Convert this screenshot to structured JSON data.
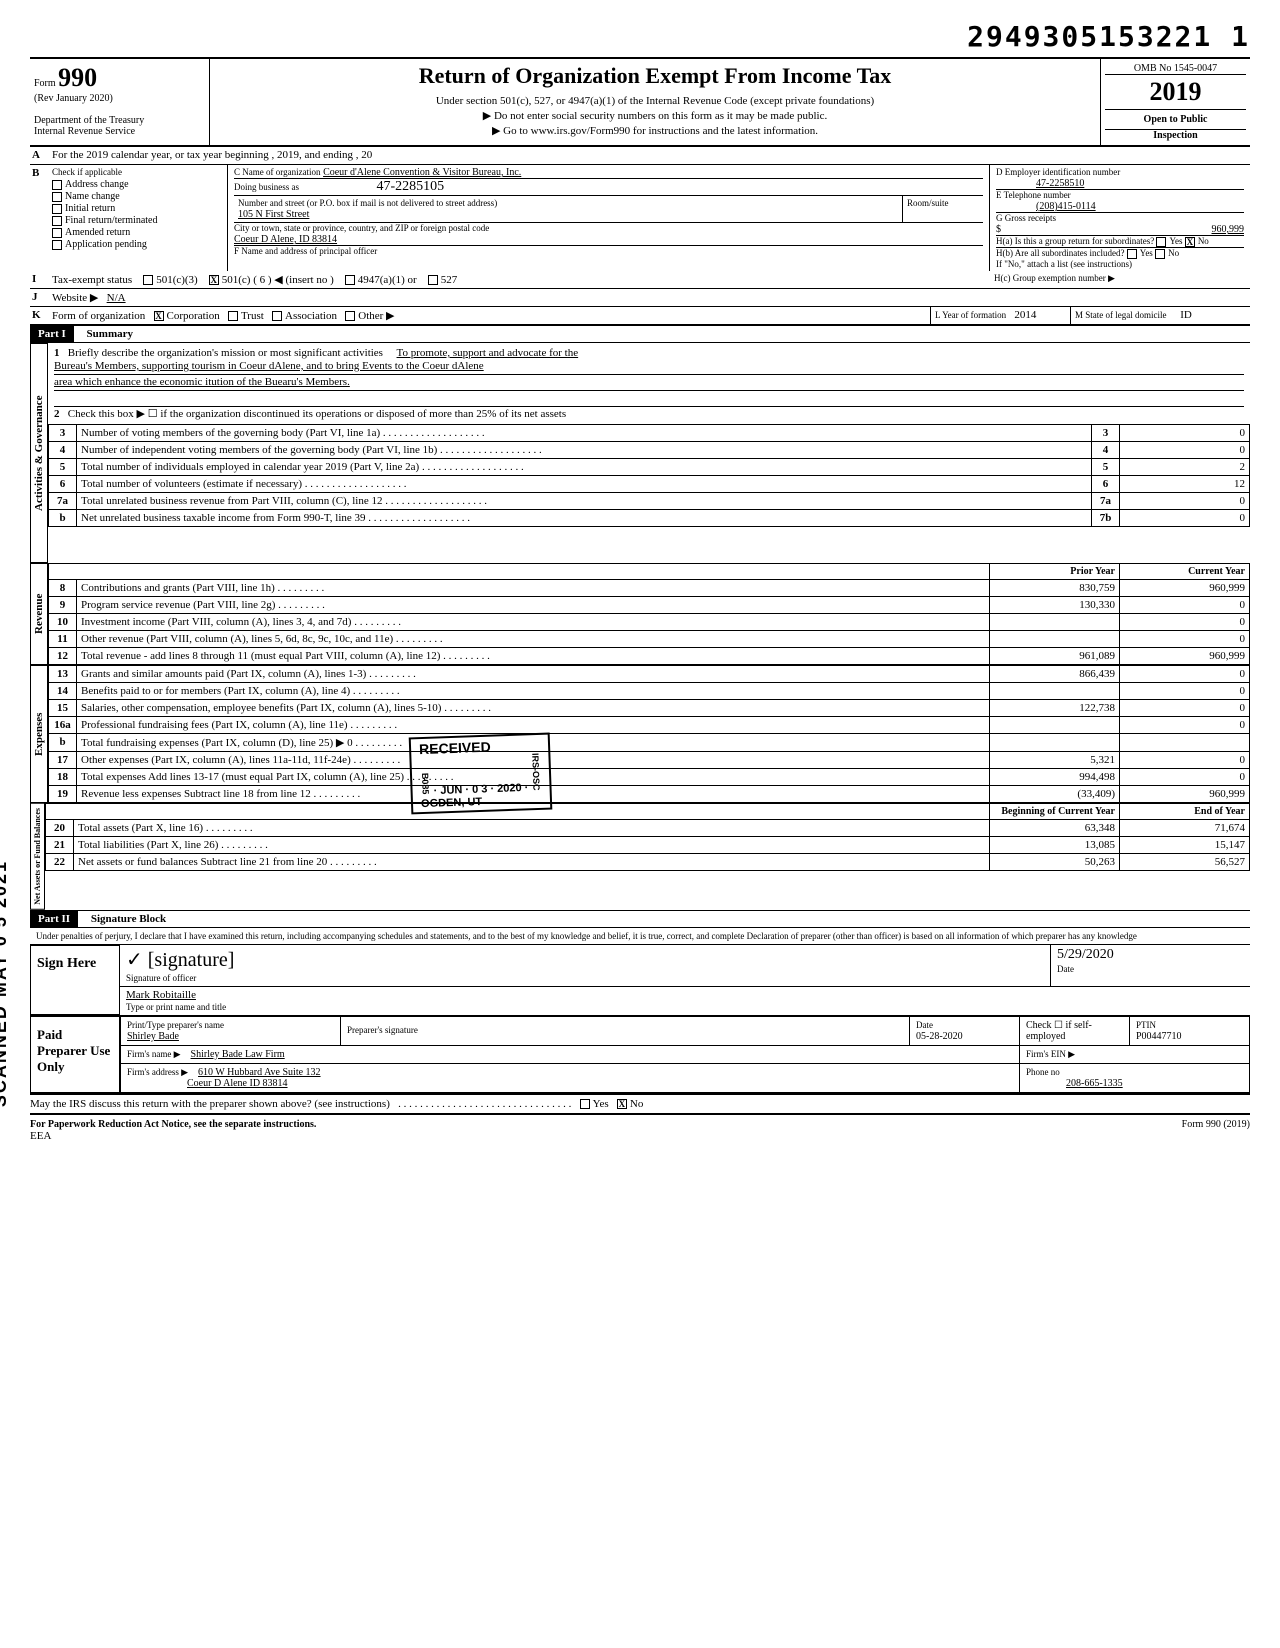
{
  "dln": "2949305153221 1",
  "form": {
    "number": "990",
    "rev": "(Rev January 2020)",
    "dept": "Department of the Treasury",
    "irs": "Internal Revenue Service",
    "title": "Return of Organization Exempt From Income Tax",
    "sub1": "Under section 501(c), 527, or 4947(a)(1) of the Internal Revenue Code (except private foundations)",
    "sub2": "▶ Do not enter social security numbers on this form as it may be made public.",
    "sub3": "▶ Go to www.irs.gov/Form990 for instructions and the latest information.",
    "omb": "OMB No 1545-0047",
    "year": "2019",
    "open": "Open to Public",
    "insp": "Inspection"
  },
  "lineA": "For the 2019 calendar year, or tax year beginning                                                                         , 2019, and ending                                              , 20",
  "checkB": {
    "hdr": "Check if applicable",
    "items": [
      "Address change",
      "Name change",
      "Initial return",
      "Final return/terminated",
      "Amended return",
      "Application pending"
    ]
  },
  "org": {
    "name_lbl": "C Name of organization",
    "name": "Coeur d'Alene Convention & Visitor Bureau, Inc.",
    "dba_lbl": "Doing business as",
    "dba_hand": "47-2285105",
    "street_lbl": "Number and street (or P.O. box if mail is not delivered to street address)",
    "room_lbl": "Room/suite",
    "street": "105 N First Street",
    "city_lbl": "City or town, state or province, country, and ZIP or foreign postal code",
    "city": "Coeur D Alene, ID 83814",
    "officer_lbl": "F Name and address of principal officer"
  },
  "right": {
    "d_lbl": "D Employer identification number",
    "ein": "47-2258510",
    "e_lbl": "E Telephone number",
    "phone": "(208)415-0114",
    "g_lbl": "G Gross receipts",
    "gross": "960,999",
    "ha": "H(a) Is this a group return for subordinates?",
    "hb": "H(b) Are all subordinates included?",
    "hb2": "If \"No,\" attach a list (see instructions)",
    "hc": "H(c) Group exemption number ▶",
    "yes": "Yes",
    "no": "No"
  },
  "taxexempt": {
    "lbl": "Tax-exempt status",
    "c3": "501(c)(3)",
    "c": "501(c) (  6  )  ◀ (insert no )",
    "a1": "4947(a)(1) or",
    "s527": "527"
  },
  "website": {
    "lbl": "Website ▶",
    "val": "N/A"
  },
  "formorg": {
    "lbl": "Form of organization",
    "corp": "Corporation",
    "trust": "Trust",
    "assoc": "Association",
    "other": "Other ▶",
    "yof_lbl": "L Year of formation",
    "yof": "2014",
    "dom_lbl": "M State of legal domicile",
    "dom": "ID"
  },
  "part1": {
    "hdr": "Part I",
    "title": "Summary",
    "q1": "Briefly describe the organization's mission or most significant activities",
    "mission1": "To promote, support and advocate for the",
    "mission2": "Bureau's Members, supporting tourism in Coeur dAlene, and to bring Events to the Coeur dAlene",
    "mission3": "area which enhance the economic itution of the Buearu's Members.",
    "q2": "Check this box ▶ ☐ if the organization discontinued its operations or disposed of more than 25% of its net assets",
    "side_gov": "Activities & Governance",
    "side_rev": "Revenue",
    "side_exp": "Expenses",
    "side_net": "Net Assets or Fund Balances",
    "prior": "Prior Year",
    "current": "Current Year",
    "begin": "Beginning of Current Year",
    "end": "End of Year",
    "rows_gov": [
      {
        "n": "3",
        "t": "Number of voting members of the governing body (Part VI, line 1a)",
        "rn": "3",
        "v": "0"
      },
      {
        "n": "4",
        "t": "Number of independent voting members of the governing body (Part VI, line 1b)",
        "rn": "4",
        "v": "0"
      },
      {
        "n": "5",
        "t": "Total number of individuals employed in calendar year 2019 (Part V, line 2a)",
        "rn": "5",
        "v": "2"
      },
      {
        "n": "6",
        "t": "Total number of volunteers (estimate if necessary)",
        "rn": "6",
        "v": "12"
      },
      {
        "n": "7a",
        "t": "Total unrelated business revenue from Part VIII, column (C), line 12",
        "rn": "7a",
        "v": "0"
      },
      {
        "n": "b",
        "t": "Net unrelated business taxable income from Form 990-T, line 39",
        "rn": "7b",
        "v": "0"
      }
    ],
    "rows_rev": [
      {
        "n": "8",
        "t": "Contributions and grants (Part VIII, line 1h)",
        "p": "830,759",
        "c": "960,999"
      },
      {
        "n": "9",
        "t": "Program service revenue (Part VIII, line 2g)",
        "p": "130,330",
        "c": "0"
      },
      {
        "n": "10",
        "t": "Investment income (Part VIII, column (A), lines 3, 4, and 7d)",
        "p": "",
        "c": "0"
      },
      {
        "n": "11",
        "t": "Other revenue (Part VIII, column (A), lines 5, 6d, 8c, 9c, 10c, and 11e)",
        "p": "",
        "c": "0"
      },
      {
        "n": "12",
        "t": "Total revenue - add lines 8 through 11 (must equal Part VIII, column (A), line 12)",
        "p": "961,089",
        "c": "960,999"
      }
    ],
    "rows_exp": [
      {
        "n": "13",
        "t": "Grants and similar amounts paid (Part IX, column (A), lines 1-3)",
        "p": "866,439",
        "c": "0"
      },
      {
        "n": "14",
        "t": "Benefits paid to or for members (Part IX, column (A), line 4)",
        "p": "",
        "c": "0"
      },
      {
        "n": "15",
        "t": "Salaries, other compensation, employee benefits (Part IX, column (A), lines 5-10)",
        "p": "122,738",
        "c": "0"
      },
      {
        "n": "16a",
        "t": "Professional fundraising fees (Part IX, column (A), line 11e)",
        "p": "",
        "c": "0"
      },
      {
        "n": "b",
        "t": "Total fundraising expenses (Part IX, column (D), line 25)  ▶                                      0",
        "p": "",
        "c": ""
      },
      {
        "n": "17",
        "t": "Other expenses (Part IX, column (A), lines 11a-11d, 11f-24e)",
        "p": "5,321",
        "c": "0"
      },
      {
        "n": "18",
        "t": "Total expenses  Add lines 13-17 (must equal Part IX, column (A), line 25)",
        "p": "994,498",
        "c": "0"
      },
      {
        "n": "19",
        "t": "Revenue less expenses  Subtract line 18 from line 12",
        "p": "(33,409)",
        "c": "960,999"
      }
    ],
    "rows_net": [
      {
        "n": "20",
        "t": "Total assets (Part X, line 16)",
        "p": "63,348",
        "c": "71,674"
      },
      {
        "n": "21",
        "t": "Total liabilities (Part X, line 26)",
        "p": "13,085",
        "c": "15,147"
      },
      {
        "n": "22",
        "t": "Net assets or fund balances  Subtract line 21 from line 20",
        "p": "50,263",
        "c": "56,527"
      }
    ]
  },
  "stamp": {
    "recv": "RECEIVED",
    "date": "JUN · 0 3 · 2020",
    "loc": "OGDEN, UT",
    "code": "B085",
    "rcode": "IRS-OSC"
  },
  "part2": {
    "hdr": "Part II",
    "title": "Signature Block",
    "perjury": "Under penalties of perjury, I declare that I have examined this return, including accompanying schedules and statements, and to the best of my knowledge and belief, it is true, correct, and complete Declaration of preparer (other than officer) is based on all information of which preparer has any knowledge",
    "sign_here": "Sign Here",
    "sig_lbl": "Signature of officer",
    "date_lbl": "Date",
    "sig_date": "5/29/2020",
    "name": "Mark Robitaille",
    "name_lbl": "Type or print name and title",
    "paid": "Paid Preparer Use Only",
    "prep_name_lbl": "Print/Type preparer's name",
    "prep_name": "Shirley Bade",
    "prep_sig_lbl": "Preparer's signature",
    "prep_date_lbl": "Date",
    "prep_date": "05-28-2020",
    "check_lbl": "Check ☐ if self-employed",
    "ptin_lbl": "PTIN",
    "ptin": "P00447710",
    "firm_lbl": "Firm's name ▶",
    "firm": "Shirley Bade Law Firm",
    "ein_lbl": "Firm's EIN ▶",
    "addr_lbl": "Firm's address ▶",
    "addr1": "610 W Hubbard Ave Suite 132",
    "addr2": "Coeur D Alene ID 83814",
    "phone_lbl": "Phone no",
    "phone": "208-665-1335",
    "discuss": "May the IRS discuss this return with the preparer shown above? (see instructions)",
    "discuss_yes": "Yes",
    "discuss_no": "No"
  },
  "footer": {
    "pra": "For Paperwork Reduction Act Notice, see the separate instructions.",
    "eea": "EEA",
    "form": "Form 990 (2019)"
  }
}
